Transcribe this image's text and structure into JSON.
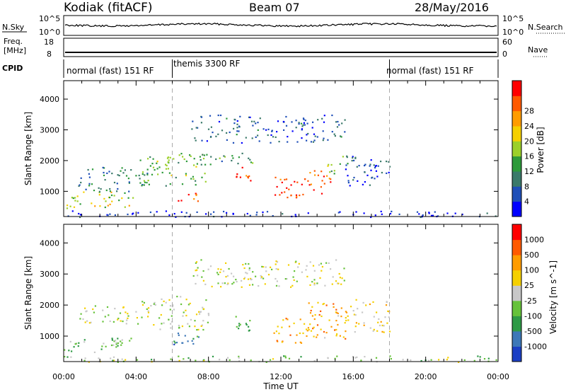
{
  "header": {
    "radar": "Kodiak (fitACF)",
    "beam": "Beam 07",
    "date": "28/May/2016"
  },
  "left_labels": {
    "nsky": "N.Sky",
    "freq_line1": "Freq.",
    "freq_line2": "[MHz]",
    "cpid": "CPID"
  },
  "right_labels": {
    "nsearch": "N.Search",
    "nave": "Nave"
  },
  "panel_ticks": {
    "noise_left": [
      "10^5",
      "10^0"
    ],
    "noise_right": [
      "10^5",
      "10^0"
    ],
    "freq_left": [
      "18",
      "8"
    ],
    "nave_right": [
      "60",
      "0"
    ]
  },
  "cpid_segments": [
    {
      "label": "normal (fast) 151 RF",
      "start_hour": 0,
      "end_hour": 6
    },
    {
      "label": "themis 3300 RF",
      "start_hour": 6,
      "end_hour": 18
    },
    {
      "label": "normal (fast) 151 RF",
      "start_hour": 18,
      "end_hour": 24
    }
  ],
  "chart_data": [
    {
      "type": "heatmap",
      "title": "",
      "xlabel": "",
      "ylabel": "Slant Range [km]",
      "x_ticks": [
        "00:00",
        "04:00",
        "08:00",
        "12:00",
        "16:00",
        "20:00",
        "00:00"
      ],
      "xlim_hours": [
        0,
        24
      ],
      "ylim": [
        180,
        4600
      ],
      "y_ticks": [
        1000,
        2000,
        3000,
        4000
      ],
      "colorbar": {
        "label": "Power [dB]",
        "ticks": [
          4,
          8,
          12,
          16,
          20,
          24,
          28
        ],
        "colors": [
          "#0000ff",
          "#1f4fb8",
          "#3b7a6a",
          "#2d9a3a",
          "#9cd02a",
          "#f5d000",
          "#ff9c00",
          "#ff5a00",
          "#ff0000"
        ]
      },
      "blobs": [
        {
          "t0": 0.0,
          "t1": 3.8,
          "r0": 450,
          "r1": 1000,
          "level": 0.55
        },
        {
          "t0": 0.8,
          "t1": 4.6,
          "r0": 1000,
          "r1": 1800,
          "level": 0.3
        },
        {
          "t0": 4.2,
          "t1": 8.0,
          "r0": 1200,
          "r1": 2300,
          "level": 0.45
        },
        {
          "t0": 6.2,
          "t1": 7.5,
          "r0": 650,
          "r1": 1000,
          "level": 0.85
        },
        {
          "t0": 7.5,
          "t1": 10.5,
          "r0": 1900,
          "r1": 2300,
          "level": 0.35
        },
        {
          "t0": 9.3,
          "t1": 10.3,
          "r0": 1200,
          "r1": 1800,
          "level": 0.85
        },
        {
          "t0": 11.5,
          "t1": 13.8,
          "r0": 800,
          "r1": 1500,
          "level": 0.9
        },
        {
          "t0": 13.5,
          "t1": 14.8,
          "r0": 900,
          "r1": 1700,
          "level": 0.8
        },
        {
          "t0": 14.5,
          "t1": 15.7,
          "r0": 1600,
          "r1": 2200,
          "level": 0.45
        },
        {
          "t0": 7.0,
          "t1": 15.5,
          "r0": 2600,
          "r1": 3500,
          "level": 0.2
        },
        {
          "t0": 15.5,
          "t1": 18.0,
          "r0": 1100,
          "r1": 2200,
          "level": 0.15
        },
        {
          "t0": 0.0,
          "t1": 24.0,
          "r0": 180,
          "r1": 380,
          "level": 0.1
        }
      ]
    },
    {
      "type": "heatmap",
      "title": "",
      "xlabel": "Time UT",
      "ylabel": "Slant Range [km]",
      "x_ticks": [
        "00:00",
        "04:00",
        "08:00",
        "12:00",
        "16:00",
        "20:00",
        "00:00"
      ],
      "xlim_hours": [
        0,
        24
      ],
      "ylim": [
        180,
        4600
      ],
      "y_ticks": [
        1000,
        2000,
        3000,
        4000
      ],
      "colorbar": {
        "label": "Velocity [m s^-1]",
        "ticks": [
          "1000",
          "500",
          "100",
          "25",
          "-25",
          "-100",
          "-500",
          "-1000"
        ],
        "colors": [
          "#1b3fc4",
          "#3d78b8",
          "#2e9a46",
          "#66c23a",
          "#c8c8c8",
          "#f5d000",
          "#ff9c00",
          "#ff5a00",
          "#ff0000"
        ]
      },
      "blobs": [
        {
          "t0": 0.0,
          "t1": 3.8,
          "r0": 450,
          "r1": 1000,
          "level": 0.38
        },
        {
          "t0": 0.8,
          "t1": 4.6,
          "r0": 1400,
          "r1": 2000,
          "level": 0.5
        },
        {
          "t0": 4.2,
          "t1": 8.0,
          "r0": 1200,
          "r1": 2300,
          "level": 0.5
        },
        {
          "t0": 6.0,
          "t1": 7.5,
          "r0": 650,
          "r1": 1300,
          "level": 0.25
        },
        {
          "t0": 9.3,
          "t1": 10.3,
          "r0": 1100,
          "r1": 1800,
          "level": 0.3
        },
        {
          "t0": 11.5,
          "t1": 13.8,
          "r0": 800,
          "r1": 1600,
          "level": 0.7
        },
        {
          "t0": 13.5,
          "t1": 15.6,
          "r0": 900,
          "r1": 2200,
          "level": 0.68
        },
        {
          "t0": 7.0,
          "t1": 15.5,
          "r0": 2600,
          "r1": 3500,
          "level": 0.5
        },
        {
          "t0": 15.5,
          "t1": 18.0,
          "r0": 1100,
          "r1": 2200,
          "level": 0.58
        },
        {
          "t0": 0.0,
          "t1": 24.0,
          "r0": 180,
          "r1": 380,
          "level": 0.45
        }
      ]
    }
  ]
}
